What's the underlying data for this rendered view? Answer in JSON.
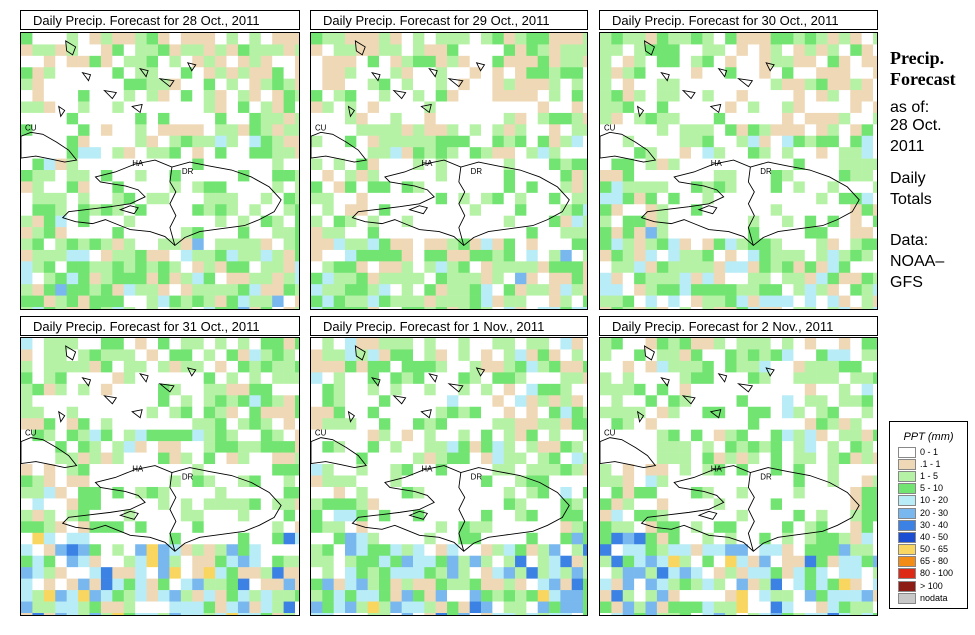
{
  "panels": [
    {
      "title": "Daily Precip. Forecast for  28 Oct., 2011",
      "seed": 11
    },
    {
      "title": "Daily Precip. Forecast for  29 Oct., 2011",
      "seed": 23
    },
    {
      "title": "Daily Precip. Forecast for  30 Oct., 2011",
      "seed": 37
    },
    {
      "title": "Daily Precip. Forecast for  31 Oct., 2011",
      "seed": 41
    },
    {
      "title": "Daily Precip. Forecast for  1 Nov., 2011",
      "seed": 53
    },
    {
      "title": "Daily Precip. Forecast for  2 Nov., 2011",
      "seed": 67
    }
  ],
  "map_labels": {
    "cuba": "CU",
    "haiti": "HA",
    "dominican_republic": "DR"
  },
  "side_panel": {
    "heading_line1": "Precip.",
    "heading_line2": "Forecast",
    "asof": "as of:",
    "date_line1": "28 Oct.",
    "date_line2": "2011",
    "totals_line1": "Daily",
    "totals_line2": "Totals",
    "data_line1": "Data:",
    "data_line2": "NOAA–",
    "data_line3": "GFS"
  },
  "legend": {
    "title": "PPT (mm)",
    "items": [
      {
        "label": "0 - 1",
        "color": "#ffffff"
      },
      {
        "label": ".1 - 1",
        "color": "#efd8b6"
      },
      {
        "label": "1 - 5",
        "color": "#b6f2a6"
      },
      {
        "label": "5 - 10",
        "color": "#72e472"
      },
      {
        "label": "10 - 20",
        "color": "#b8ecf6"
      },
      {
        "label": "20 - 30",
        "color": "#78b8ee"
      },
      {
        "label": "30 - 40",
        "color": "#3b82e4"
      },
      {
        "label": "40 - 50",
        "color": "#1c4ed4"
      },
      {
        "label": "50 - 65",
        "color": "#f8d660"
      },
      {
        "label": "65 - 80",
        "color": "#f28c16"
      },
      {
        "label": "80 - 100",
        "color": "#dc2a14"
      },
      {
        "label": "> 100",
        "color": "#8c1c14"
      },
      {
        "label": "nodata",
        "color": "#c8c8c8"
      }
    ]
  }
}
